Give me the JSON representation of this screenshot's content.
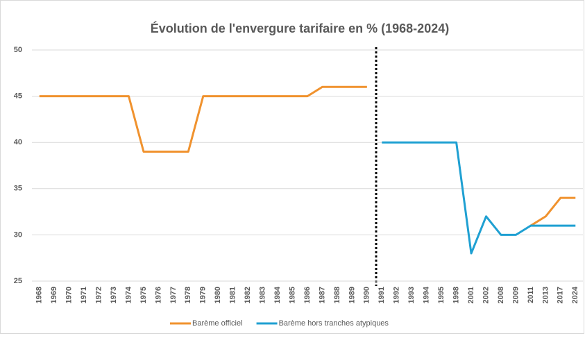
{
  "chart_data": {
    "type": "line",
    "title": "Évolution de l'envergure tarifaire en % (1968-2024)",
    "categories": [
      "1968",
      "1969",
      "1970",
      "1971",
      "1972",
      "1973",
      "1974",
      "1975",
      "1976",
      "1977",
      "1978",
      "1979",
      "1980",
      "1981",
      "1982",
      "1983",
      "1984",
      "1985",
      "1986",
      "1987",
      "1988",
      "1989",
      "1990",
      "1991",
      "1992",
      "1993",
      "1994",
      "1995",
      "1998",
      "2001",
      "2002",
      "2008",
      "2009",
      "2011",
      "2013",
      "2017",
      "2024"
    ],
    "series": [
      {
        "name": "Barème officiel",
        "color": "#f0922e",
        "values": [
          45,
          45,
          45,
          45,
          45,
          45,
          45,
          39,
          39,
          39,
          39,
          45,
          45,
          45,
          45,
          45,
          45,
          45,
          45,
          46,
          46,
          46,
          46,
          null,
          null,
          null,
          null,
          null,
          null,
          null,
          null,
          null,
          null,
          31,
          32,
          34,
          34
        ]
      },
      {
        "name": "Barème hors tranches atypiques",
        "color": "#1fa0d2",
        "values": [
          null,
          null,
          null,
          null,
          null,
          null,
          null,
          null,
          null,
          null,
          null,
          null,
          null,
          null,
          null,
          null,
          null,
          null,
          null,
          null,
          null,
          null,
          null,
          40,
          40,
          40,
          40,
          40,
          40,
          28,
          32,
          30,
          30,
          31,
          31,
          31,
          31
        ]
      }
    ],
    "ylim": [
      25,
      50
    ],
    "yticks": [
      25,
      30,
      35,
      40,
      45,
      50
    ],
    "grid": true,
    "legend": "bottom"
  }
}
